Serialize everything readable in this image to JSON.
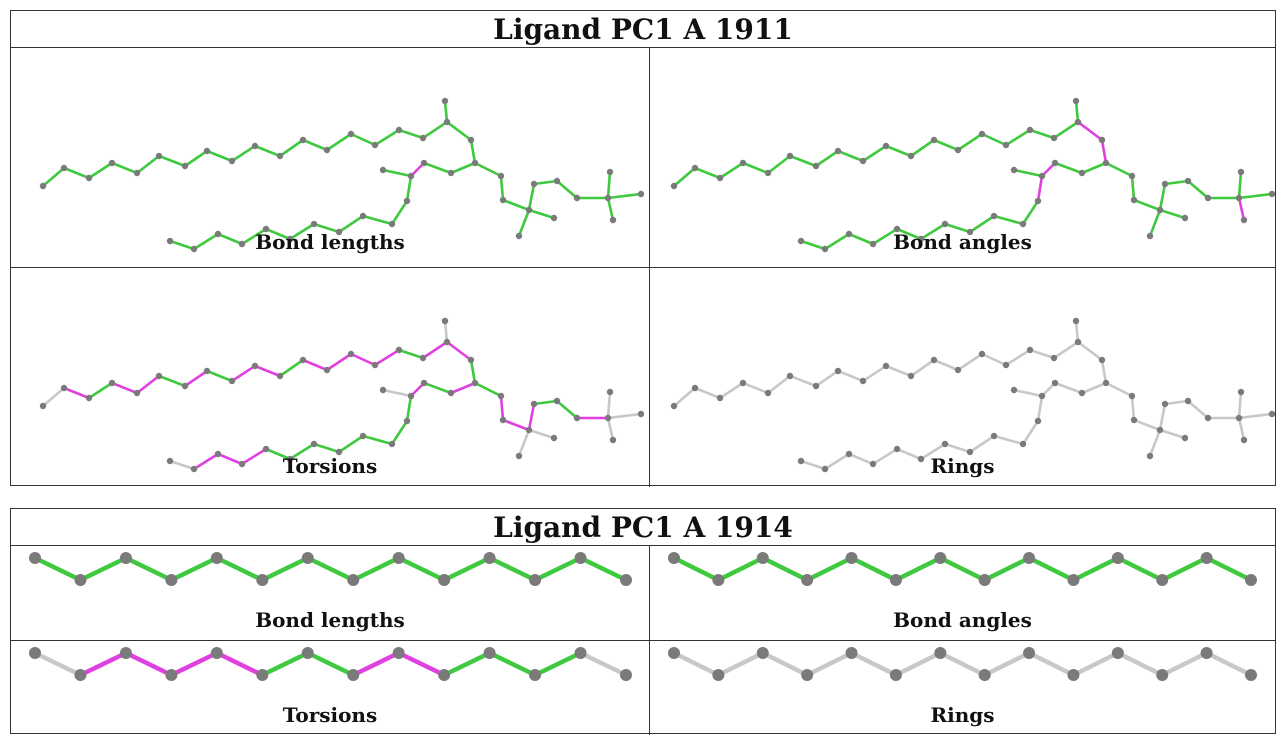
{
  "ligands": [
    {
      "title": "Ligand PC1 A 1911",
      "panels": [
        {
          "caption": "Bond lengths",
          "mode": "lengths"
        },
        {
          "caption": "Bond angles",
          "mode": "angles"
        },
        {
          "caption": "Torsions",
          "mode": "torsions"
        },
        {
          "caption": "Rings",
          "mode": "rings"
        }
      ]
    },
    {
      "title": "Ligand PC1 A 1914",
      "panels": [
        {
          "caption": "Bond lengths",
          "mode": "lengths"
        },
        {
          "caption": "Bond angles",
          "mode": "angles"
        },
        {
          "caption": "Torsions",
          "mode": "torsions"
        },
        {
          "caption": "Rings",
          "mode": "rings"
        }
      ]
    }
  ],
  "colors": {
    "ok": "#3ec93e",
    "outlier": "#e040e0",
    "na": "#c8c8c8",
    "atom": "#7a7a7a",
    "border": "#333333"
  }
}
